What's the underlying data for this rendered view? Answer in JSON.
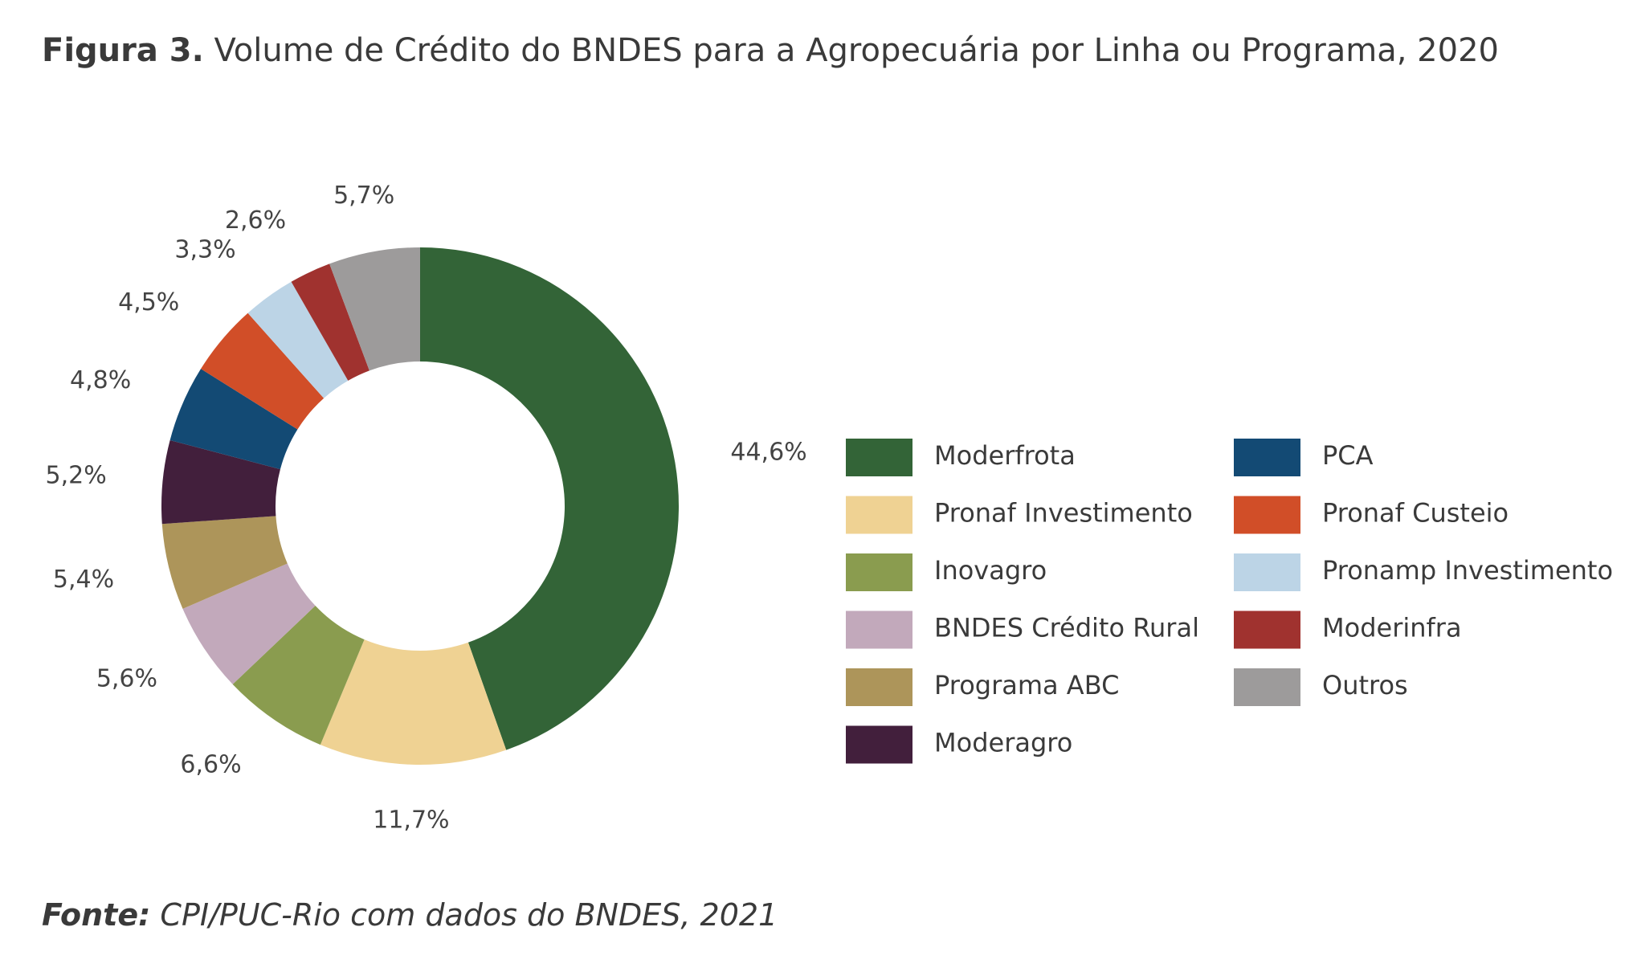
{
  "chart_data": {
    "type": "donut",
    "title_label": "Figura 3.",
    "title": "Volume de Crédito do BNDES para a Agropecuária por Linha ou Programa, 2020",
    "categories": [
      "Moderfrota",
      "Pronaf Investimento",
      "Inovagro",
      "BNDES Crédito Rural",
      "Programa ABC",
      "Moderagro",
      "PCA",
      "Pronaf Custeio",
      "Pronamp Investimento",
      "Moderinfra",
      "Outros"
    ],
    "values": [
      44.6,
      11.7,
      6.6,
      5.6,
      5.4,
      5.2,
      4.8,
      4.5,
      3.3,
      2.6,
      5.7
    ],
    "value_labels": [
      "44,6%",
      "11,7%",
      "6,6%",
      "5,6%",
      "5,4%",
      "5,2%",
      "4,8%",
      "4,5%",
      "3,3%",
      "2,6%",
      "5,7%"
    ],
    "colors": [
      "#336437",
      "#efd293",
      "#8a9c4f",
      "#c2a9bb",
      "#ad955a",
      "#421f3c",
      "#134a74",
      "#d14e28",
      "#bcd4e6",
      "#a0322f",
      "#9d9b9b"
    ],
    "source_label": "Fonte:",
    "source": "CPI/PUC-Rio com dados do BNDES, 2021"
  }
}
